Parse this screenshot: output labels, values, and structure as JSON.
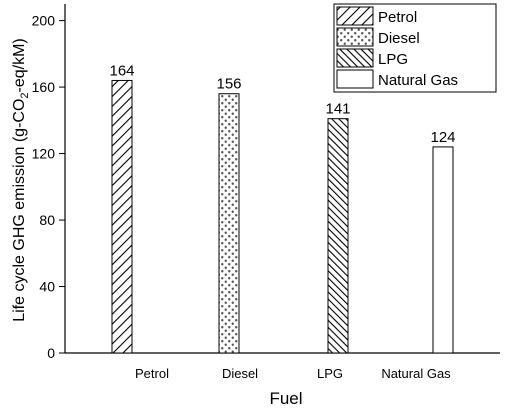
{
  "chart_data": {
    "type": "bar",
    "categories": [
      "Petrol",
      "Diesel",
      "LPG",
      "Natural Gas"
    ],
    "values": [
      164,
      156,
      141,
      124
    ],
    "data_labels": [
      "164",
      "156",
      "141",
      "124"
    ],
    "patterns": [
      "back-diagonal-hatch",
      "dots",
      "forward-diagonal-hatch",
      "solid-white"
    ],
    "xlabel": "Fuel",
    "ylabel_parts": {
      "pre": "Life cycle GHG emission (g-CO",
      "sub": "2",
      "post": "-eq/kM)"
    },
    "yticks": [
      "0",
      "40",
      "80",
      "120",
      "160",
      "200"
    ],
    "ylim": [
      0,
      210
    ],
    "grid": false,
    "legend": {
      "position": "top-right",
      "entries": [
        "Petrol",
        "Diesel",
        "LPG",
        "Natural Gas"
      ]
    },
    "colors": {
      "bar_stroke": "#000000",
      "bar_fill": "#ffffff",
      "text": "#000000"
    }
  }
}
